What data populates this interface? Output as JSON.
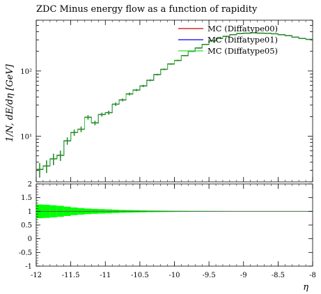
{
  "chart_data": {
    "type": "line",
    "title": "ZDC Minus energy flow as a function of rapidity",
    "xlabel": "η",
    "ylabel": "1/N, dE/dη [GeV]",
    "xlim": [
      -12,
      -8
    ],
    "ylim_main": [
      2,
      600
    ],
    "yscale_main": "log",
    "ylim_ratio": [
      -1,
      2
    ],
    "legend_position": "top-right",
    "x_ticks": [
      "-12",
      "-11.5",
      "-11",
      "-10.5",
      "-10",
      "-9.5",
      "-9",
      "-8.5",
      "-8"
    ],
    "y_ticks_main": [
      "10¹",
      "10²"
    ],
    "y_ticks_ratio": [
      "2",
      "1.5",
      "1",
      "0.5",
      "0",
      "-0.5",
      "-1"
    ],
    "series": [
      {
        "name": "MC (Diffatype00)",
        "color": "#cc0000"
      },
      {
        "name": "MC (Diffatype01)",
        "color": "#0000ee"
      },
      {
        "name": "MC (Diffatype05)",
        "color": "#33dd33"
      }
    ],
    "data_color": "#2e8b2e",
    "band_color": "#00ff00",
    "x": [
      -11.95,
      -11.85,
      -11.75,
      -11.65,
      -11.55,
      -11.45,
      -11.35,
      -11.25,
      -11.15,
      -11.05,
      -10.95,
      -10.85,
      -10.75,
      -10.65,
      -10.55,
      -10.45,
      -10.35,
      -10.25,
      -10.15,
      -10.05,
      -9.95,
      -9.85,
      -9.75,
      -9.65,
      -9.55,
      -9.45,
      -9.35,
      -9.25,
      -9.15,
      -9.05,
      -8.95,
      -8.85,
      -8.75,
      -8.65,
      -8.55,
      -8.45,
      -8.35,
      -8.25,
      -8.15,
      -8.05
    ],
    "values": [
      3.1,
      3.5,
      4.5,
      5.1,
      8.5,
      11.4,
      12.8,
      19.5,
      16.0,
      21.5,
      23.0,
      31.0,
      36.0,
      44.5,
      51.0,
      59.0,
      72.0,
      88.0,
      106.0,
      128.0,
      145.0,
      172.0,
      200.0,
      225.0,
      255.0,
      290.0,
      315.0,
      340.0,
      360.0,
      375.0,
      380.0,
      385.0,
      380.0,
      378.0,
      372.0,
      360.0,
      348.0,
      330.0,
      315.0,
      305.0
    ],
    "yerr_rel": [
      0.25,
      0.22,
      0.2,
      0.18,
      0.13,
      0.11,
      0.1,
      0.08,
      0.08,
      0.07,
      0.07,
      0.06,
      0.05,
      0.05,
      0.04,
      0.04,
      0.035,
      0.03,
      0.03,
      0.025,
      0.025,
      0.02,
      0.02,
      0.02,
      0.015,
      0.015,
      0.015,
      0.015,
      0.01,
      0.01,
      0.01,
      0.01,
      0.01,
      0.01,
      0.01,
      0.01,
      0.01,
      0.01,
      0.01,
      0.01
    ],
    "ratio_band_halfwidth": [
      0.25,
      0.24,
      0.22,
      0.2,
      0.17,
      0.14,
      0.12,
      0.1,
      0.09,
      0.08,
      0.07,
      0.06,
      0.05,
      0.045,
      0.04,
      0.035,
      0.03,
      0.028,
      0.025,
      0.022,
      0.02,
      0.018,
      0.016,
      0.015,
      0.014,
      0.013,
      0.012,
      0.011,
      0.01,
      0.01,
      0.01,
      0.01,
      0.01,
      0.01,
      0.01,
      0.01,
      0.01,
      0.01,
      0.01,
      0.01
    ]
  }
}
